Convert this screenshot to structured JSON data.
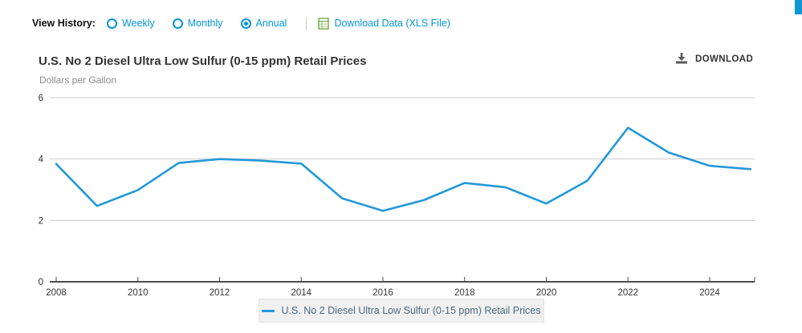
{
  "page": {
    "accent_color": "#0e96d5"
  },
  "controls": {
    "view_history_label": "View History:",
    "options": [
      {
        "label": "Weekly",
        "selected": false
      },
      {
        "label": "Monthly",
        "selected": false
      },
      {
        "label": "Annual",
        "selected": true
      }
    ],
    "download_data_label": "Download Data (XLS File)"
  },
  "header": {
    "title": "U.S. No 2 Diesel Ultra Low Sulfur (0-15 ppm) Retail Prices",
    "subtitle": "Dollars per Gallon",
    "download_label": "DOWNLOAD"
  },
  "chart_data": {
    "type": "line",
    "title": "U.S. No 2 Diesel Ultra Low Sulfur (0-15 ppm) Retail Prices",
    "ylabel": "Dollars per Gallon",
    "x": [
      2008,
      2009,
      2010,
      2011,
      2012,
      2013,
      2014,
      2015,
      2016,
      2017,
      2018,
      2019,
      2020,
      2021,
      2022,
      2023,
      2024,
      2025
    ],
    "values": [
      3.84,
      2.47,
      2.99,
      3.87,
      4.0,
      3.95,
      3.85,
      2.72,
      2.31,
      2.66,
      3.22,
      3.08,
      2.55,
      3.29,
      5.02,
      4.21,
      3.78,
      3.67
    ],
    "ylim": [
      0,
      6
    ],
    "yticks": [
      0,
      2,
      4,
      6
    ],
    "xticks": [
      2008,
      2010,
      2012,
      2014,
      2016,
      2018,
      2020,
      2022,
      2024
    ],
    "grid": true,
    "line_color": "#2398d8",
    "grid_color": "#cccccc",
    "axis_color": "#4d4d4d",
    "tick_label_color": "#333333",
    "legend_position": "bottom"
  },
  "legend": {
    "label": "U.S. No 2 Diesel Ultra Low Sulfur (0-15 ppm) Retail Prices"
  }
}
